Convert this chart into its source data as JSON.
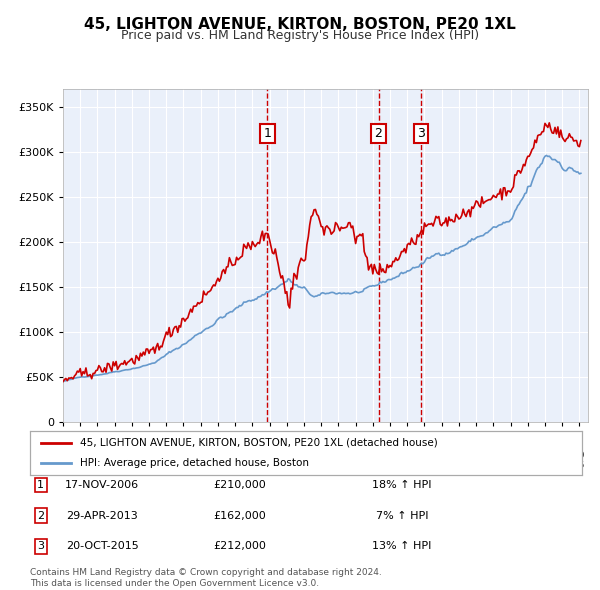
{
  "title": "45, LIGHTON AVENUE, KIRTON, BOSTON, PE20 1XL",
  "subtitle": "Price paid vs. HM Land Registry's House Price Index (HPI)",
  "legend_line1": "45, LIGHTON AVENUE, KIRTON, BOSTON, PE20 1XL (detached house)",
  "legend_line2": "HPI: Average price, detached house, Boston",
  "footnote1": "Contains HM Land Registry data © Crown copyright and database right 2024.",
  "footnote2": "This data is licensed under the Open Government Licence v3.0.",
  "sale_color": "#cc0000",
  "hpi_color": "#6699cc",
  "plot_bg_color": "#eaf0fa",
  "grid_color": "#ffffff",
  "vline_color": "#cc0000",
  "transactions": [
    {
      "num": 1,
      "date": "17-NOV-2006",
      "price": 210000,
      "pct": "18%",
      "dir": "↑"
    },
    {
      "num": 2,
      "date": "29-APR-2013",
      "price": 162000,
      "pct": "7%",
      "dir": "↑"
    },
    {
      "num": 3,
      "date": "20-OCT-2015",
      "price": 212000,
      "pct": "13%",
      "dir": "↑"
    }
  ],
  "transaction_dates_decimal": [
    2006.88,
    2013.33,
    2015.8
  ],
  "ylim": [
    0,
    370000
  ],
  "xlim_start": 1995.0,
  "xlim_end": 2025.5,
  "yticks": [
    0,
    50000,
    100000,
    150000,
    200000,
    250000,
    300000,
    350000
  ],
  "ytick_labels": [
    "0",
    "£50K",
    "£100K",
    "£150K",
    "£200K",
    "£250K",
    "£300K",
    "£350K"
  ],
  "xticks": [
    1995,
    1996,
    1997,
    1998,
    1999,
    2000,
    2001,
    2002,
    2003,
    2004,
    2005,
    2006,
    2007,
    2008,
    2009,
    2010,
    2011,
    2012,
    2013,
    2014,
    2015,
    2016,
    2017,
    2018,
    2019,
    2020,
    2021,
    2022,
    2023,
    2024,
    2025
  ]
}
